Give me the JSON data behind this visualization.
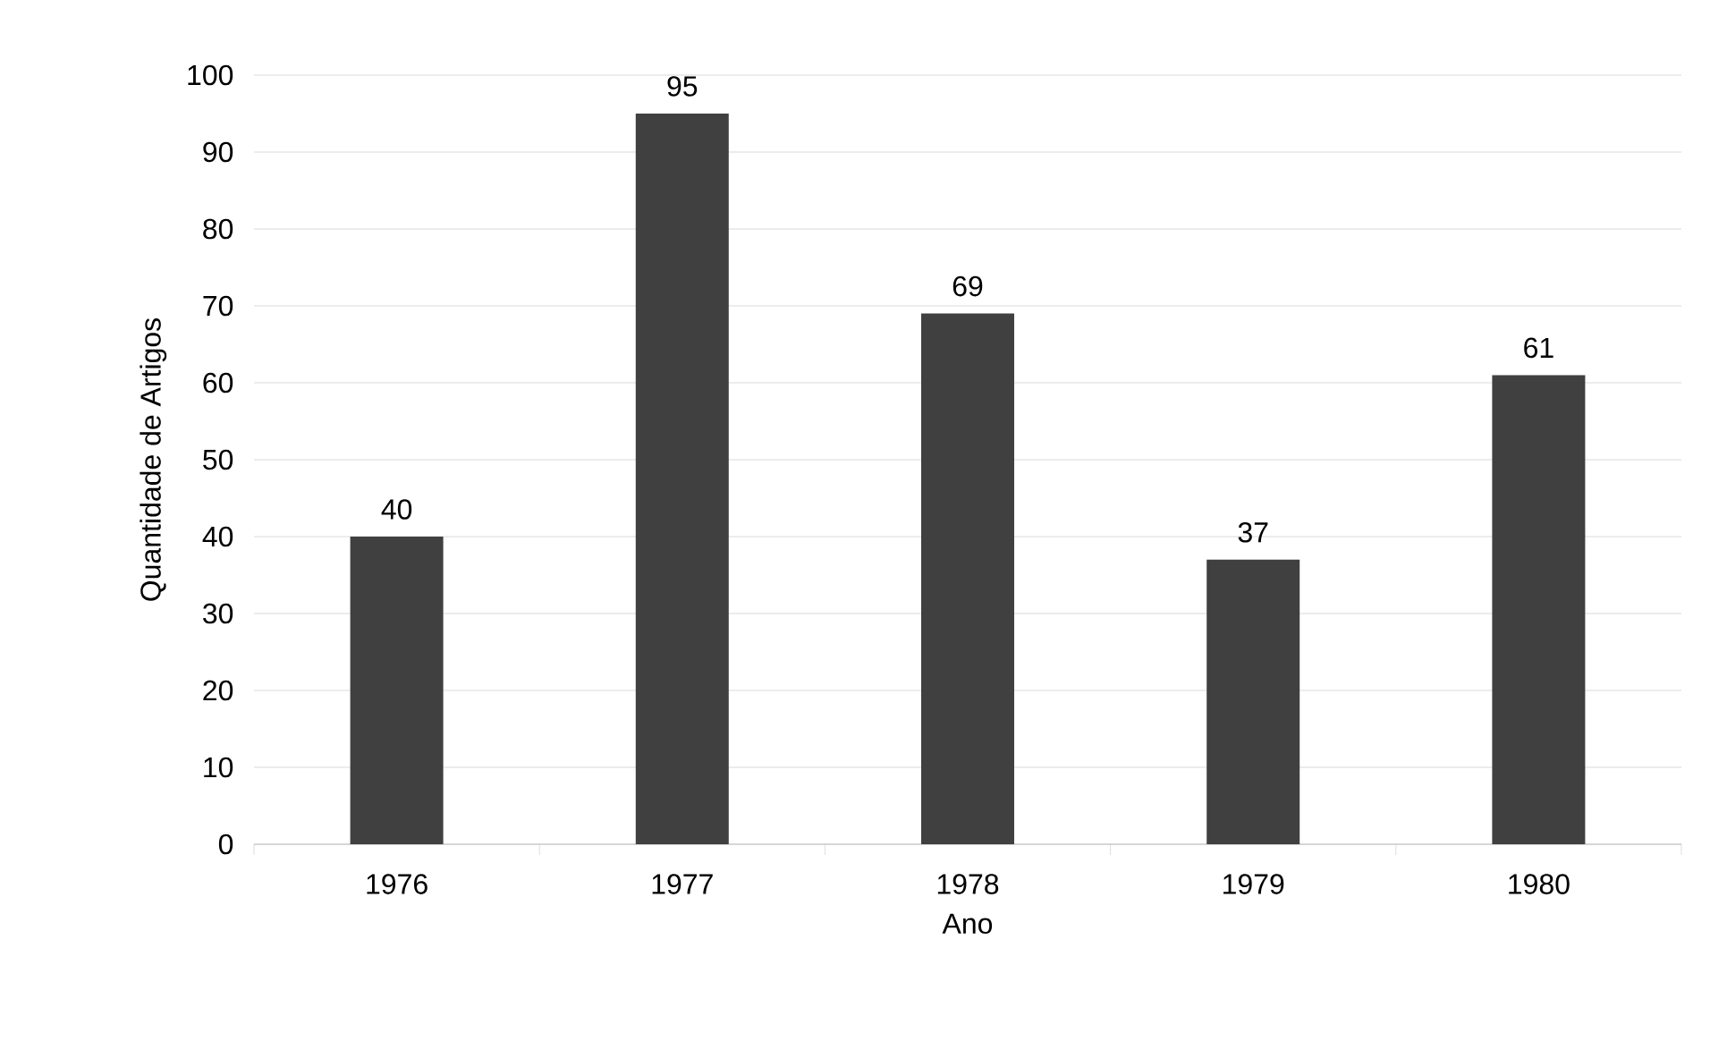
{
  "chart_data": {
    "type": "bar",
    "xlabel": "Ano",
    "ylabel": "Quantidade de Artigos",
    "categories": [
      "1976",
      "1977",
      "1978",
      "1979",
      "1980"
    ],
    "values": [
      40,
      95,
      69,
      37,
      61
    ],
    "color": "#404040",
    "ylim": [
      0,
      100
    ],
    "yticks": [
      0,
      10,
      20,
      30,
      40,
      50,
      60,
      70,
      80,
      90,
      100
    ],
    "grid": "y",
    "data_labels": true
  }
}
